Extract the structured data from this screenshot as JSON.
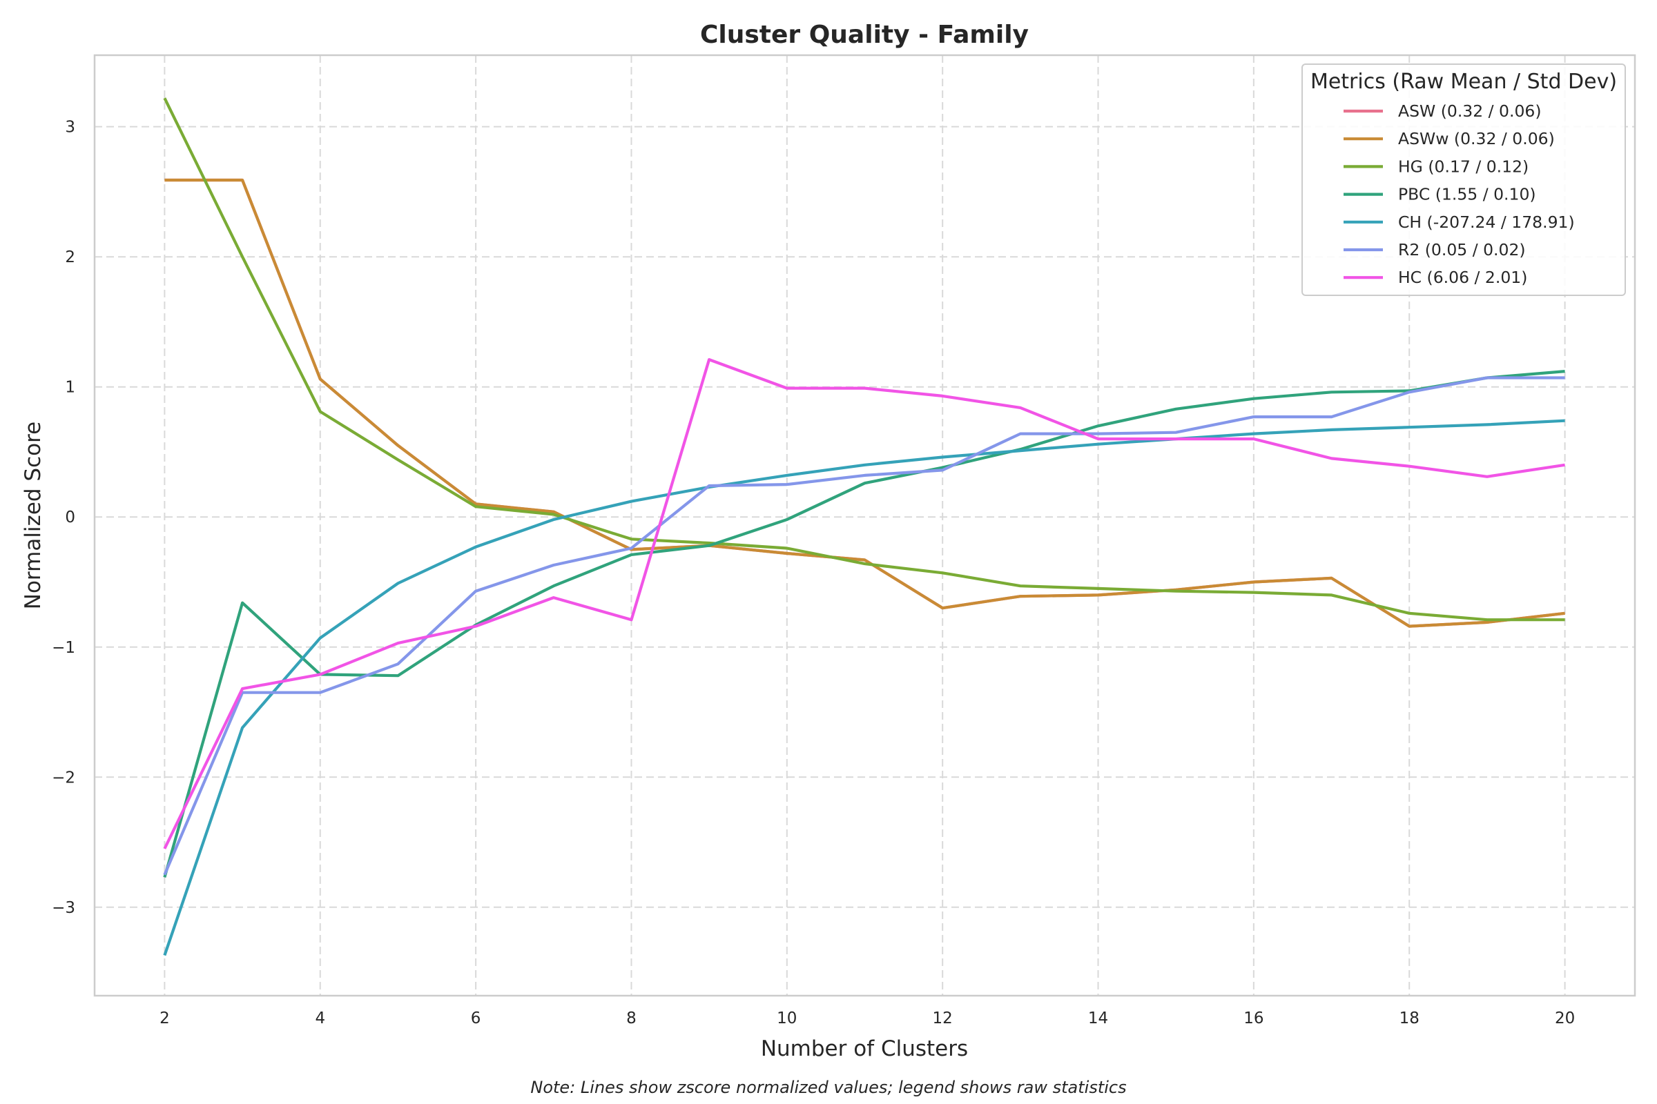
{
  "chart_data": {
    "type": "line",
    "title": "Cluster Quality - Family",
    "xlabel": "Number of Clusters",
    "ylabel": "Normalized Score",
    "note": "Note: Lines show zscore normalized values; legend shows raw statistics",
    "xlim": [
      1.1,
      20.9
    ],
    "ylim": [
      -3.68,
      3.55
    ],
    "xticks": [
      2,
      4,
      6,
      8,
      10,
      12,
      14,
      16,
      18,
      20
    ],
    "yticks": [
      -3,
      -2,
      -1,
      0,
      1,
      2,
      3
    ],
    "ytick_labels": [
      "−3",
      "−2",
      "−1",
      "0",
      "1",
      "2",
      "3"
    ],
    "grid": true,
    "legend": {
      "title": "Metrics (Raw Mean / Std Dev)",
      "placement": "top-right"
    },
    "x": [
      2,
      3,
      4,
      5,
      6,
      7,
      8,
      9,
      10,
      11,
      12,
      13,
      14,
      15,
      16,
      17,
      18,
      19,
      20
    ],
    "series": [
      {
        "name": "ASW (0.32 / 0.06)",
        "color": "#e8718d",
        "values": [
          2.59,
          2.59,
          1.06,
          0.55,
          0.1,
          0.04,
          -0.25,
          -0.22,
          -0.28,
          -0.33,
          -0.7,
          -0.61,
          -0.6,
          -0.56,
          -0.5,
          -0.47,
          -0.84,
          -0.81,
          -0.74
        ]
      },
      {
        "name": "ASWw (0.32 / 0.06)",
        "color": "#c98b35",
        "values": [
          2.59,
          2.59,
          1.06,
          0.55,
          0.1,
          0.04,
          -0.25,
          -0.22,
          -0.28,
          -0.33,
          -0.7,
          -0.61,
          -0.6,
          -0.56,
          -0.5,
          -0.47,
          -0.84,
          -0.81,
          -0.74
        ]
      },
      {
        "name": "HG (0.17 / 0.12)",
        "color": "#7aab35",
        "values": [
          3.22,
          2.0,
          0.81,
          0.44,
          0.08,
          0.02,
          -0.17,
          -0.2,
          -0.24,
          -0.36,
          -0.43,
          -0.53,
          -0.55,
          -0.57,
          -0.58,
          -0.6,
          -0.74,
          -0.79,
          -0.79
        ]
      },
      {
        "name": "PBC (1.55 / 0.10)",
        "color": "#30a37c",
        "values": [
          -2.77,
          -0.66,
          -1.21,
          -1.22,
          -0.83,
          -0.53,
          -0.29,
          -0.22,
          -0.02,
          0.26,
          0.38,
          0.52,
          0.7,
          0.83,
          0.91,
          0.96,
          0.97,
          1.07,
          1.12
        ]
      },
      {
        "name": "CH (-207.24 / 178.91)",
        "color": "#35a2b8",
        "values": [
          -3.37,
          -1.62,
          -0.93,
          -0.51,
          -0.23,
          -0.02,
          0.12,
          0.23,
          0.32,
          0.4,
          0.46,
          0.51,
          0.56,
          0.6,
          0.64,
          0.67,
          0.69,
          0.71,
          0.74
        ]
      },
      {
        "name": "R2 (0.05 / 0.02)",
        "color": "#8496ea",
        "values": [
          -2.75,
          -1.35,
          -1.35,
          -1.13,
          -0.57,
          -0.37,
          -0.24,
          0.24,
          0.25,
          0.32,
          0.36,
          0.64,
          0.64,
          0.65,
          0.77,
          0.77,
          0.96,
          1.07,
          1.07
        ]
      },
      {
        "name": "HC (6.06 / 2.01)",
        "color": "#f154e6",
        "values": [
          -2.55,
          -1.32,
          -1.21,
          -0.97,
          -0.84,
          -0.62,
          -0.79,
          1.21,
          0.99,
          0.99,
          0.93,
          0.84,
          0.6,
          0.6,
          0.6,
          0.45,
          0.39,
          0.31,
          0.4
        ]
      }
    ]
  }
}
